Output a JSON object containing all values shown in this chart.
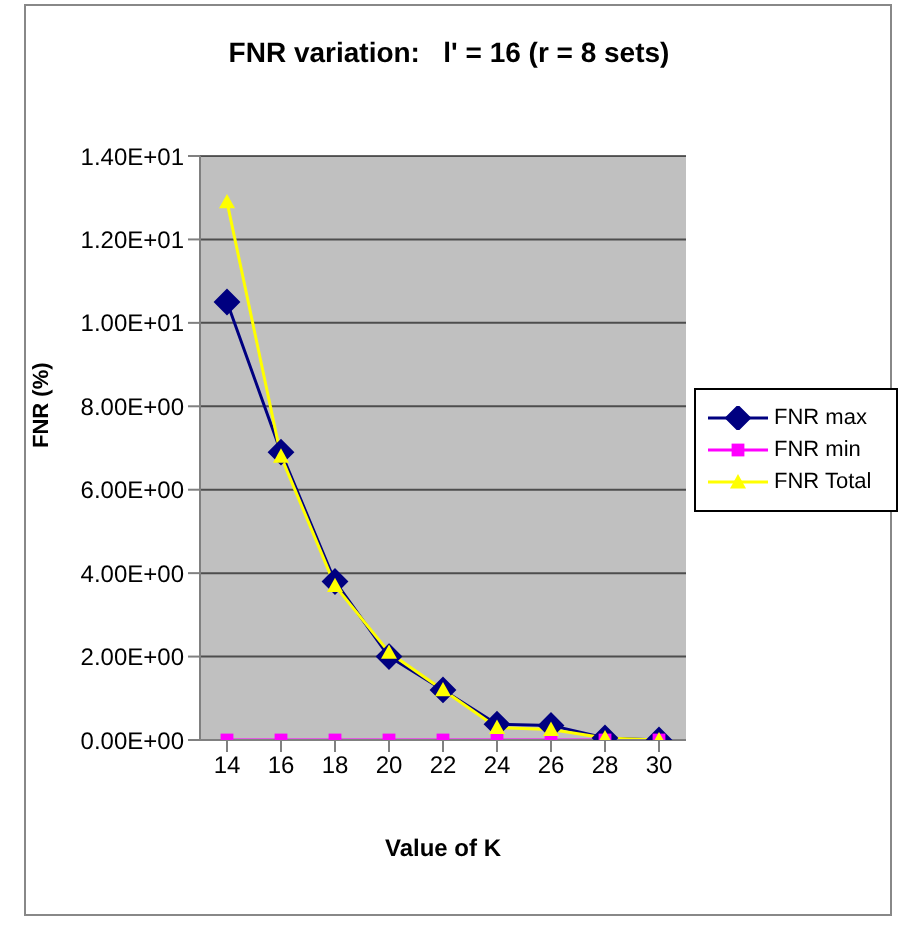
{
  "chart_data": {
    "type": "line",
    "title": "FNR variation:   l' = 16 (r = 8 sets)",
    "xlabel": "Value of K",
    "ylabel": "FNR (%)",
    "categories": [
      "14",
      "16",
      "18",
      "20",
      "22",
      "24",
      "26",
      "28",
      "30"
    ],
    "series": [
      {
        "name": "FNR max",
        "color": "#000080",
        "marker": "diamond",
        "values": [
          10.5,
          6.9,
          3.8,
          2.0,
          1.2,
          0.38,
          0.35,
          0.05,
          0
        ]
      },
      {
        "name": "FNR min",
        "color": "#ff00ff",
        "marker": "square",
        "values": [
          0,
          0,
          0,
          0,
          0,
          0,
          0,
          0,
          0
        ]
      },
      {
        "name": "FNR Total",
        "color": "#ffff00",
        "marker": "triangle",
        "values": [
          12.9,
          6.8,
          3.7,
          2.1,
          1.2,
          0.3,
          0.25,
          0.05,
          0
        ]
      }
    ],
    "ylim": [
      0,
      14
    ],
    "yticks": [
      {
        "value": 0,
        "label": "0.00E+00"
      },
      {
        "value": 2,
        "label": "2.00E+00"
      },
      {
        "value": 4,
        "label": "4.00E+00"
      },
      {
        "value": 6,
        "label": "6.00E+00"
      },
      {
        "value": 8,
        "label": "8.00E+00"
      },
      {
        "value": 10,
        "label": "1.00E+01"
      },
      {
        "value": 12,
        "label": "1.20E+01"
      },
      {
        "value": 14,
        "label": "1.40E+01"
      }
    ],
    "grid": "y",
    "legend": "right",
    "line_style": "solid"
  }
}
